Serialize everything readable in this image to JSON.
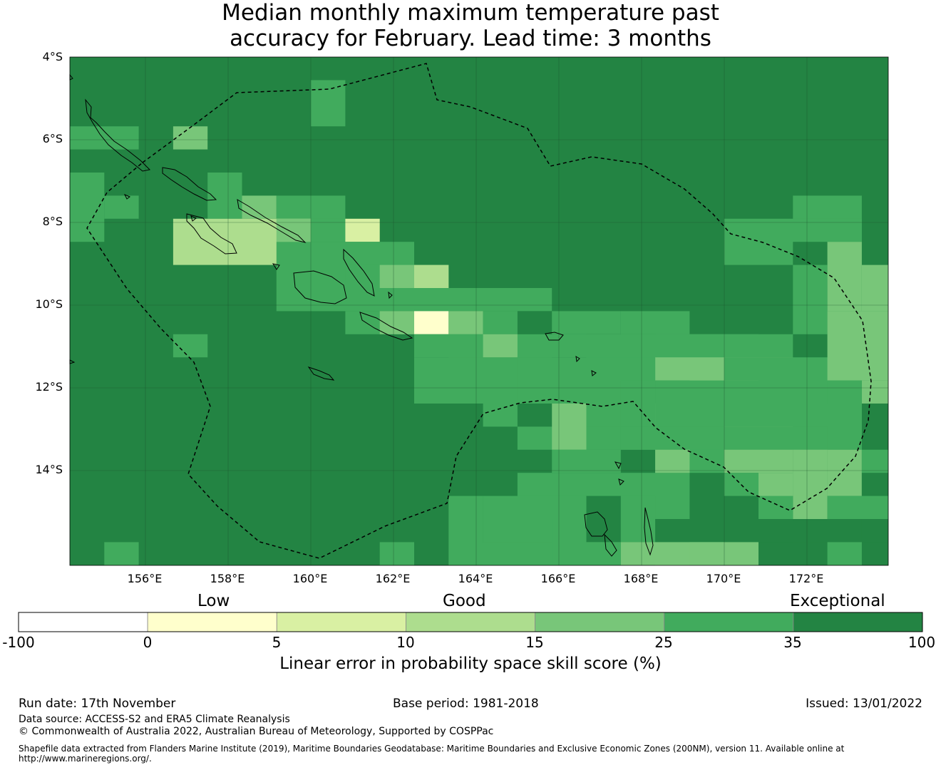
{
  "title": {
    "line1": "Median monthly maximum temperature past",
    "line2": "accuracy for February. Lead time: 3 months"
  },
  "map": {
    "lat_labels": [
      "4°S",
      "6°S",
      "8°S",
      "10°S",
      "12°S",
      "14°S"
    ],
    "lon_labels": [
      "156°E",
      "158°E",
      "160°E",
      "162°E",
      "164°E",
      "166°E",
      "168°E",
      "170°E",
      "172°E"
    ],
    "background_category": "35-100",
    "eez_boundary": "dashed",
    "palette": {
      "below_0": "#ffffff",
      "0_5": "#ffffcc",
      "5_10": "#d9f0a3",
      "10_15": "#addd8e",
      "15_25": "#78c679",
      "25_35": "#41ab5d",
      "35_100": "#238443"
    }
  },
  "legend": {
    "category_labels": [
      "Low",
      "Good",
      "Exceptional"
    ],
    "ticks": [
      "-100",
      "0",
      "5",
      "10",
      "15",
      "25",
      "35",
      "100"
    ],
    "colors": [
      "#ffffff",
      "#ffffcc",
      "#d9f0a3",
      "#addd8e",
      "#78c679",
      "#41ab5d",
      "#238443"
    ],
    "title": "Linear error in probability space skill score (%)"
  },
  "footer": {
    "run_date": "Run date: 17th November",
    "base_period": "Base period: 1981-2018",
    "issued": "Issued: 13/01/2022",
    "data_source": "Data source: ACCESS-S2 and ERA5 Climate Reanalysis",
    "copyright": "© Commonwealth of Australia 2022, Australian Bureau of Meteorology, Supported by COSPPac",
    "shapefile_line1": "Shapefile data extracted from Flanders Marine Institute (2019), Maritime Boundaries Geodatabase: Maritime Boundaries and Exclusive Economic Zones (200NM), version 11. Available online at",
    "shapefile_line2": "http://www.marineregions.org/."
  }
}
